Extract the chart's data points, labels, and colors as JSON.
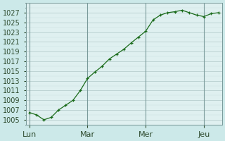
{
  "bg_color": "#cce9e9",
  "plot_bg_color": "#dff0f0",
  "line_color": "#1a6b1a",
  "marker_color": "#1a6b1a",
  "grid_color_major": "#b0c8c8",
  "grid_color_minor": "#c8dede",
  "tick_label_color": "#2d4a2d",
  "day_line_color": "#7a9a9a",
  "xlabel_color": "#1a4a1a",
  "ylim": [
    1004,
    1029
  ],
  "ytick_values": [
    1005,
    1007,
    1009,
    1011,
    1013,
    1015,
    1017,
    1019,
    1021,
    1023,
    1025,
    1027
  ],
  "day_labels": [
    "Lun",
    "Mar",
    "Mer",
    "Jeu"
  ],
  "day_positions": [
    0,
    8,
    16,
    24
  ],
  "x_values": [
    0,
    1,
    2,
    3,
    4,
    5,
    6,
    7,
    8,
    9,
    10,
    11,
    12,
    13,
    14,
    15,
    16,
    17,
    18,
    19,
    20,
    21,
    22,
    23,
    24,
    25,
    26
  ],
  "y_values": [
    1006.5,
    1006.0,
    1005.0,
    1005.5,
    1007.0,
    1008.0,
    1009.0,
    1011.0,
    1013.5,
    1014.8,
    1016.0,
    1017.5,
    1018.5,
    1019.5,
    1020.8,
    1022.0,
    1023.2,
    1025.5,
    1026.5,
    1027.0,
    1027.2,
    1027.5,
    1027.0,
    1026.5,
    1026.2,
    1026.8,
    1027.0
  ],
  "fontsize_ticks": 7,
  "fontsize_day": 8
}
